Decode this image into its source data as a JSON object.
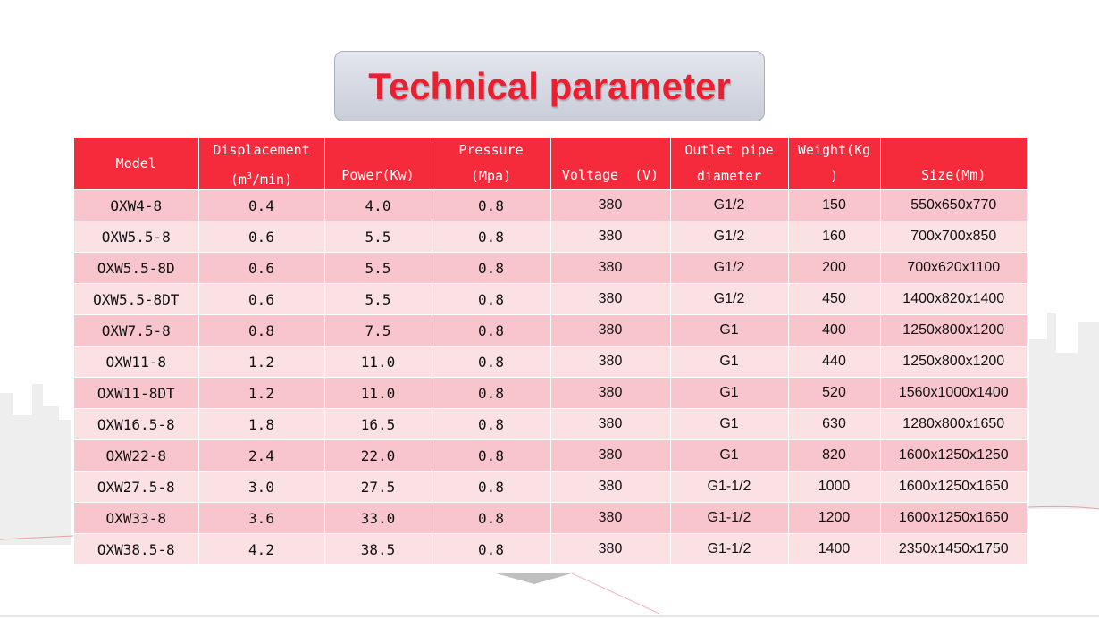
{
  "title": "Technical parameter",
  "table": {
    "headers": {
      "model": "Model",
      "displacement_line1": "Displacement",
      "displacement_line2_pre": "(m",
      "displacement_sup": "3",
      "displacement_line2_post": "/min)",
      "power": "Power(Kw)",
      "pressure_line1": "Pressure",
      "pressure_line2": "(Mpa)",
      "voltage": "Voltage  (V)",
      "outlet_line1": "Outlet pipe",
      "outlet_line2": "diameter",
      "weight_line1": "Weight(Kg",
      "weight_line2": ")",
      "size": "Size(Mm)"
    },
    "rows": [
      {
        "model": "OXW4-8",
        "displacement": "0.4",
        "power": "4.0",
        "pressure": "0.8",
        "voltage": "380",
        "outlet": "G1/2",
        "weight": "150",
        "size": "550x650x770"
      },
      {
        "model": "OXW5.5-8",
        "displacement": "0.6",
        "power": "5.5",
        "pressure": "0.8",
        "voltage": "380",
        "outlet": "G1/2",
        "weight": "160",
        "size": "700x700x850"
      },
      {
        "model": "OXW5.5-8D",
        "displacement": "0.6",
        "power": "5.5",
        "pressure": "0.8",
        "voltage": "380",
        "outlet": "G1/2",
        "weight": "200",
        "size": "700x620x1100"
      },
      {
        "model": "OXW5.5-8DT",
        "displacement": "0.6",
        "power": "5.5",
        "pressure": "0.8",
        "voltage": "380",
        "outlet": "G1/2",
        "weight": "450",
        "size": "1400x820x1400"
      },
      {
        "model": "OXW7.5-8",
        "displacement": "0.8",
        "power": "7.5",
        "pressure": "0.8",
        "voltage": "380",
        "outlet": "G1",
        "weight": "400",
        "size": "1250x800x1200"
      },
      {
        "model": "OXW11-8",
        "displacement": "1.2",
        "power": "11.0",
        "pressure": "0.8",
        "voltage": "380",
        "outlet": "G1",
        "weight": "440",
        "size": "1250x800x1200"
      },
      {
        "model": "OXW11-8DT",
        "displacement": "1.2",
        "power": "11.0",
        "pressure": "0.8",
        "voltage": "380",
        "outlet": "G1",
        "weight": "520",
        "size": "1560x1000x1400"
      },
      {
        "model": "OXW16.5-8",
        "displacement": "1.8",
        "power": "16.5",
        "pressure": "0.8",
        "voltage": "380",
        "outlet": "G1",
        "weight": "630",
        "size": "1280x800x1650"
      },
      {
        "model": "OXW22-8",
        "displacement": "2.4",
        "power": "22.0",
        "pressure": "0.8",
        "voltage": "380",
        "outlet": "G1",
        "weight": "820",
        "size": "1600x1250x1250"
      },
      {
        "model": "OXW27.5-8",
        "displacement": "3.0",
        "power": "27.5",
        "pressure": "0.8",
        "voltage": "380",
        "outlet": "G1-1/2",
        "weight": "1000",
        "size": "1600x1250x1650"
      },
      {
        "model": "OXW33-8",
        "displacement": "3.6",
        "power": "33.0",
        "pressure": "0.8",
        "voltage": "380",
        "outlet": "G1-1/2",
        "weight": "1200",
        "size": "1600x1250x1650"
      },
      {
        "model": "OXW38.5-8",
        "displacement": "4.2",
        "power": "38.5",
        "pressure": "0.8",
        "voltage": "380",
        "outlet": "G1-1/2",
        "weight": "1400",
        "size": "2350x1450x1750"
      }
    ]
  },
  "colors": {
    "title_red": "#e8202f",
    "header_red": "#f52a3b",
    "row_dark": "#f7c5cb",
    "row_light": "#fbe1e4"
  }
}
